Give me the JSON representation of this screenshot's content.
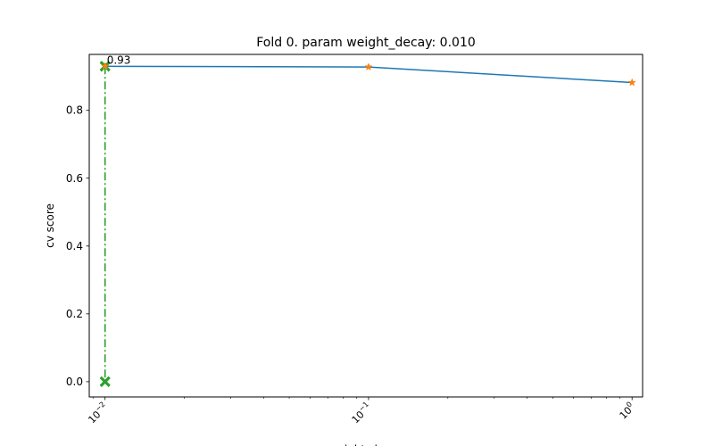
{
  "chart_data": {
    "type": "line",
    "title": "Fold 0. param weight_decay: 0.010",
    "xlabel": "weight_decay",
    "ylabel": "cv score",
    "xscale": "log",
    "xlim_exponents": [
      -2.06,
      0.04
    ],
    "ylim": [
      -0.045,
      0.965
    ],
    "x": [
      0.01,
      0.1,
      1.0
    ],
    "series": [
      {
        "name": "cv score",
        "values": [
          0.93,
          0.928,
          0.882
        ],
        "color": "#1f77b4"
      }
    ],
    "markers": {
      "shape": "star",
      "color": "#ff7f0e"
    },
    "best": {
      "x": 0.01,
      "value": 0.93,
      "label": "0.93",
      "color": "#2ca02c",
      "line_style": "dash-dot",
      "line_from": 0.0
    },
    "yticks": [
      {
        "value": 0.0,
        "label": "0.0"
      },
      {
        "value": 0.2,
        "label": "0.2"
      },
      {
        "value": 0.4,
        "label": "0.4"
      },
      {
        "value": 0.6,
        "label": "0.6"
      },
      {
        "value": 0.8,
        "label": "0.8"
      }
    ],
    "xticks": [
      {
        "value": 0.01,
        "base": "10",
        "exp": "−2"
      },
      {
        "value": 0.1,
        "base": "10",
        "exp": "−1"
      },
      {
        "value": 1.0,
        "base": "10",
        "exp": "0"
      }
    ],
    "xtick_rotation_deg": 45,
    "grid": false
  }
}
